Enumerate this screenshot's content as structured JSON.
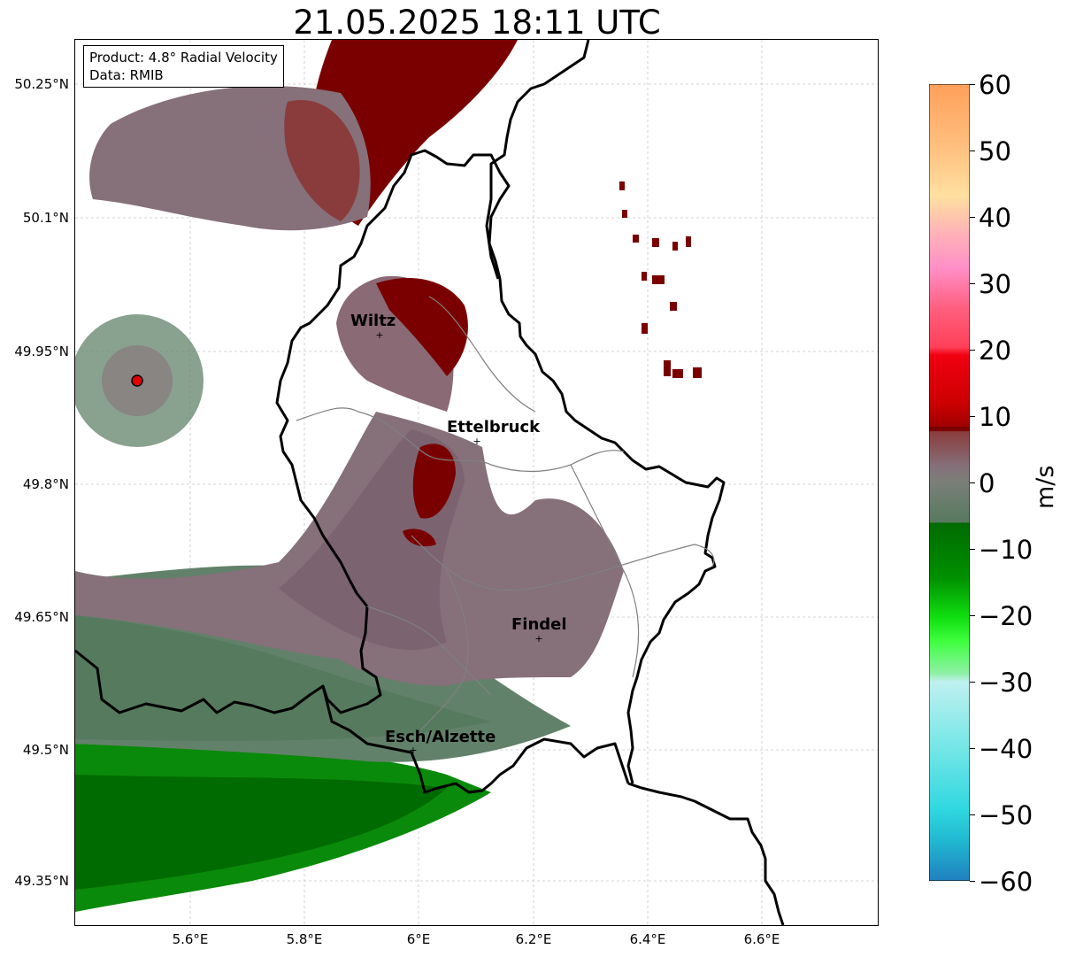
{
  "title": "21.05.2025 18:11 UTC",
  "info": {
    "product": "Product: 4.8° Radial Velocity",
    "data": "Data: RMIB"
  },
  "lat_labels": [
    "50.25°N",
    "50.1°N",
    "49.95°N",
    "49.8°N",
    "49.65°N",
    "49.5°N",
    "49.35°N"
  ],
  "lon_labels": [
    "5.6°E",
    "5.8°E",
    "6°E",
    "6.2°E",
    "6.4°E",
    "6.6°E"
  ],
  "cities": [
    "Wiltz",
    "Ettelbruck",
    "Findel",
    "Esch/Alzette"
  ],
  "colorbar": {
    "ticks": [
      "60",
      "50",
      "40",
      "30",
      "20",
      "10",
      "0",
      "−10",
      "−20",
      "−30",
      "−40",
      "−50",
      "−60"
    ],
    "unit": "m/s",
    "range": [
      -60,
      60
    ]
  },
  "colors": {
    "outbound_dark_red": "#7a0000",
    "outbound_red": "#cc0000",
    "near_zero_mauve": "#86707a",
    "near_zero_green": "#62816a",
    "inbound_green": "#0a8a0a",
    "radar_site": "#e00000"
  }
}
